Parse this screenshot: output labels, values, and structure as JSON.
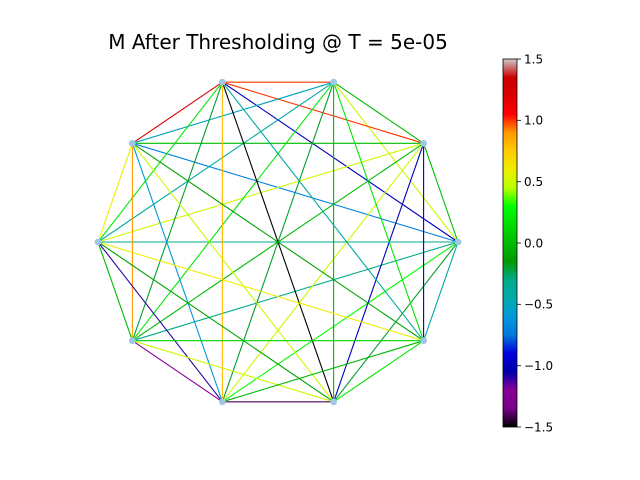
{
  "chart_data": {
    "type": "network",
    "title": "M After Thresholding @ T = 5e-05",
    "node_count": 10,
    "node_color": "#9ec8e6",
    "edges": [
      {
        "a": 0,
        "b": 1,
        "value": 0.0
      },
      {
        "a": 0,
        "b": 2,
        "value": 0.5
      },
      {
        "a": 0,
        "b": 3,
        "value": -1.0
      },
      {
        "a": 0,
        "b": 4,
        "value": -0.7
      },
      {
        "a": 0,
        "b": 5,
        "value": -0.3
      },
      {
        "a": 0,
        "b": 6,
        "value": -0.3
      },
      {
        "a": 0,
        "b": 7,
        "value": 0.3
      },
      {
        "a": 0,
        "b": 8,
        "value": -0.2
      },
      {
        "a": 0,
        "b": 9,
        "value": -0.4
      },
      {
        "a": 1,
        "b": 2,
        "value": 0.0
      },
      {
        "a": 1,
        "b": 3,
        "value": 1.0
      },
      {
        "a": 1,
        "b": 4,
        "value": 0.0
      },
      {
        "a": 1,
        "b": 5,
        "value": 0.5
      },
      {
        "a": 1,
        "b": 6,
        "value": 0.0
      },
      {
        "a": 1,
        "b": 7,
        "value": 0.5
      },
      {
        "a": 1,
        "b": 8,
        "value": -1.0
      },
      {
        "a": 1,
        "b": 9,
        "value": -1.0
      },
      {
        "a": 2,
        "b": 3,
        "value": 1.0
      },
      {
        "a": 2,
        "b": 4,
        "value": -0.5
      },
      {
        "a": 2,
        "b": 5,
        "value": -0.4
      },
      {
        "a": 2,
        "b": 6,
        "value": 0.2
      },
      {
        "a": 2,
        "b": 7,
        "value": -0.2
      },
      {
        "a": 2,
        "b": 8,
        "value": 0.0
      },
      {
        "a": 2,
        "b": 9,
        "value": 0.2
      },
      {
        "a": 3,
        "b": 4,
        "value": 1.2
      },
      {
        "a": 3,
        "b": 5,
        "value": 0.2
      },
      {
        "a": 3,
        "b": 6,
        "value": -0.2
      },
      {
        "a": 3,
        "b": 7,
        "value": 0.8
      },
      {
        "a": 3,
        "b": 8,
        "value": -1.5
      },
      {
        "a": 3,
        "b": 9,
        "value": -0.4
      },
      {
        "a": 4,
        "b": 5,
        "value": 0.6
      },
      {
        "a": 4,
        "b": 6,
        "value": 0.9
      },
      {
        "a": 4,
        "b": 7,
        "value": -0.6
      },
      {
        "a": 4,
        "b": 8,
        "value": 0.5
      },
      {
        "a": 4,
        "b": 9,
        "value": -0.1
      },
      {
        "a": 5,
        "b": 6,
        "value": 0.0
      },
      {
        "a": 5,
        "b": 7,
        "value": -1.1
      },
      {
        "a": 5,
        "b": 8,
        "value": -0.1
      },
      {
        "a": 5,
        "b": 9,
        "value": 0.6
      },
      {
        "a": 6,
        "b": 7,
        "value": -1.2
      },
      {
        "a": 6,
        "b": 8,
        "value": 0.5
      },
      {
        "a": 6,
        "b": 9,
        "value": 0.1
      },
      {
        "a": 7,
        "b": 8,
        "value": -1.4
      },
      {
        "a": 7,
        "b": 9,
        "value": 0.0
      },
      {
        "a": 8,
        "b": 9,
        "value": 0.2
      }
    ],
    "colorbar": {
      "min": -1.5,
      "max": 1.5,
      "colormap": "nipy_spectral",
      "ticks": [
        {
          "value": 1.5,
          "label": "1.5"
        },
        {
          "value": 1.0,
          "label": "1.0"
        },
        {
          "value": 0.5,
          "label": "0.5"
        },
        {
          "value": 0.0,
          "label": "0.0"
        },
        {
          "value": -0.5,
          "label": "−0.5"
        },
        {
          "value": -1.0,
          "label": "−1.0"
        },
        {
          "value": -1.5,
          "label": "−1.5"
        }
      ]
    }
  }
}
